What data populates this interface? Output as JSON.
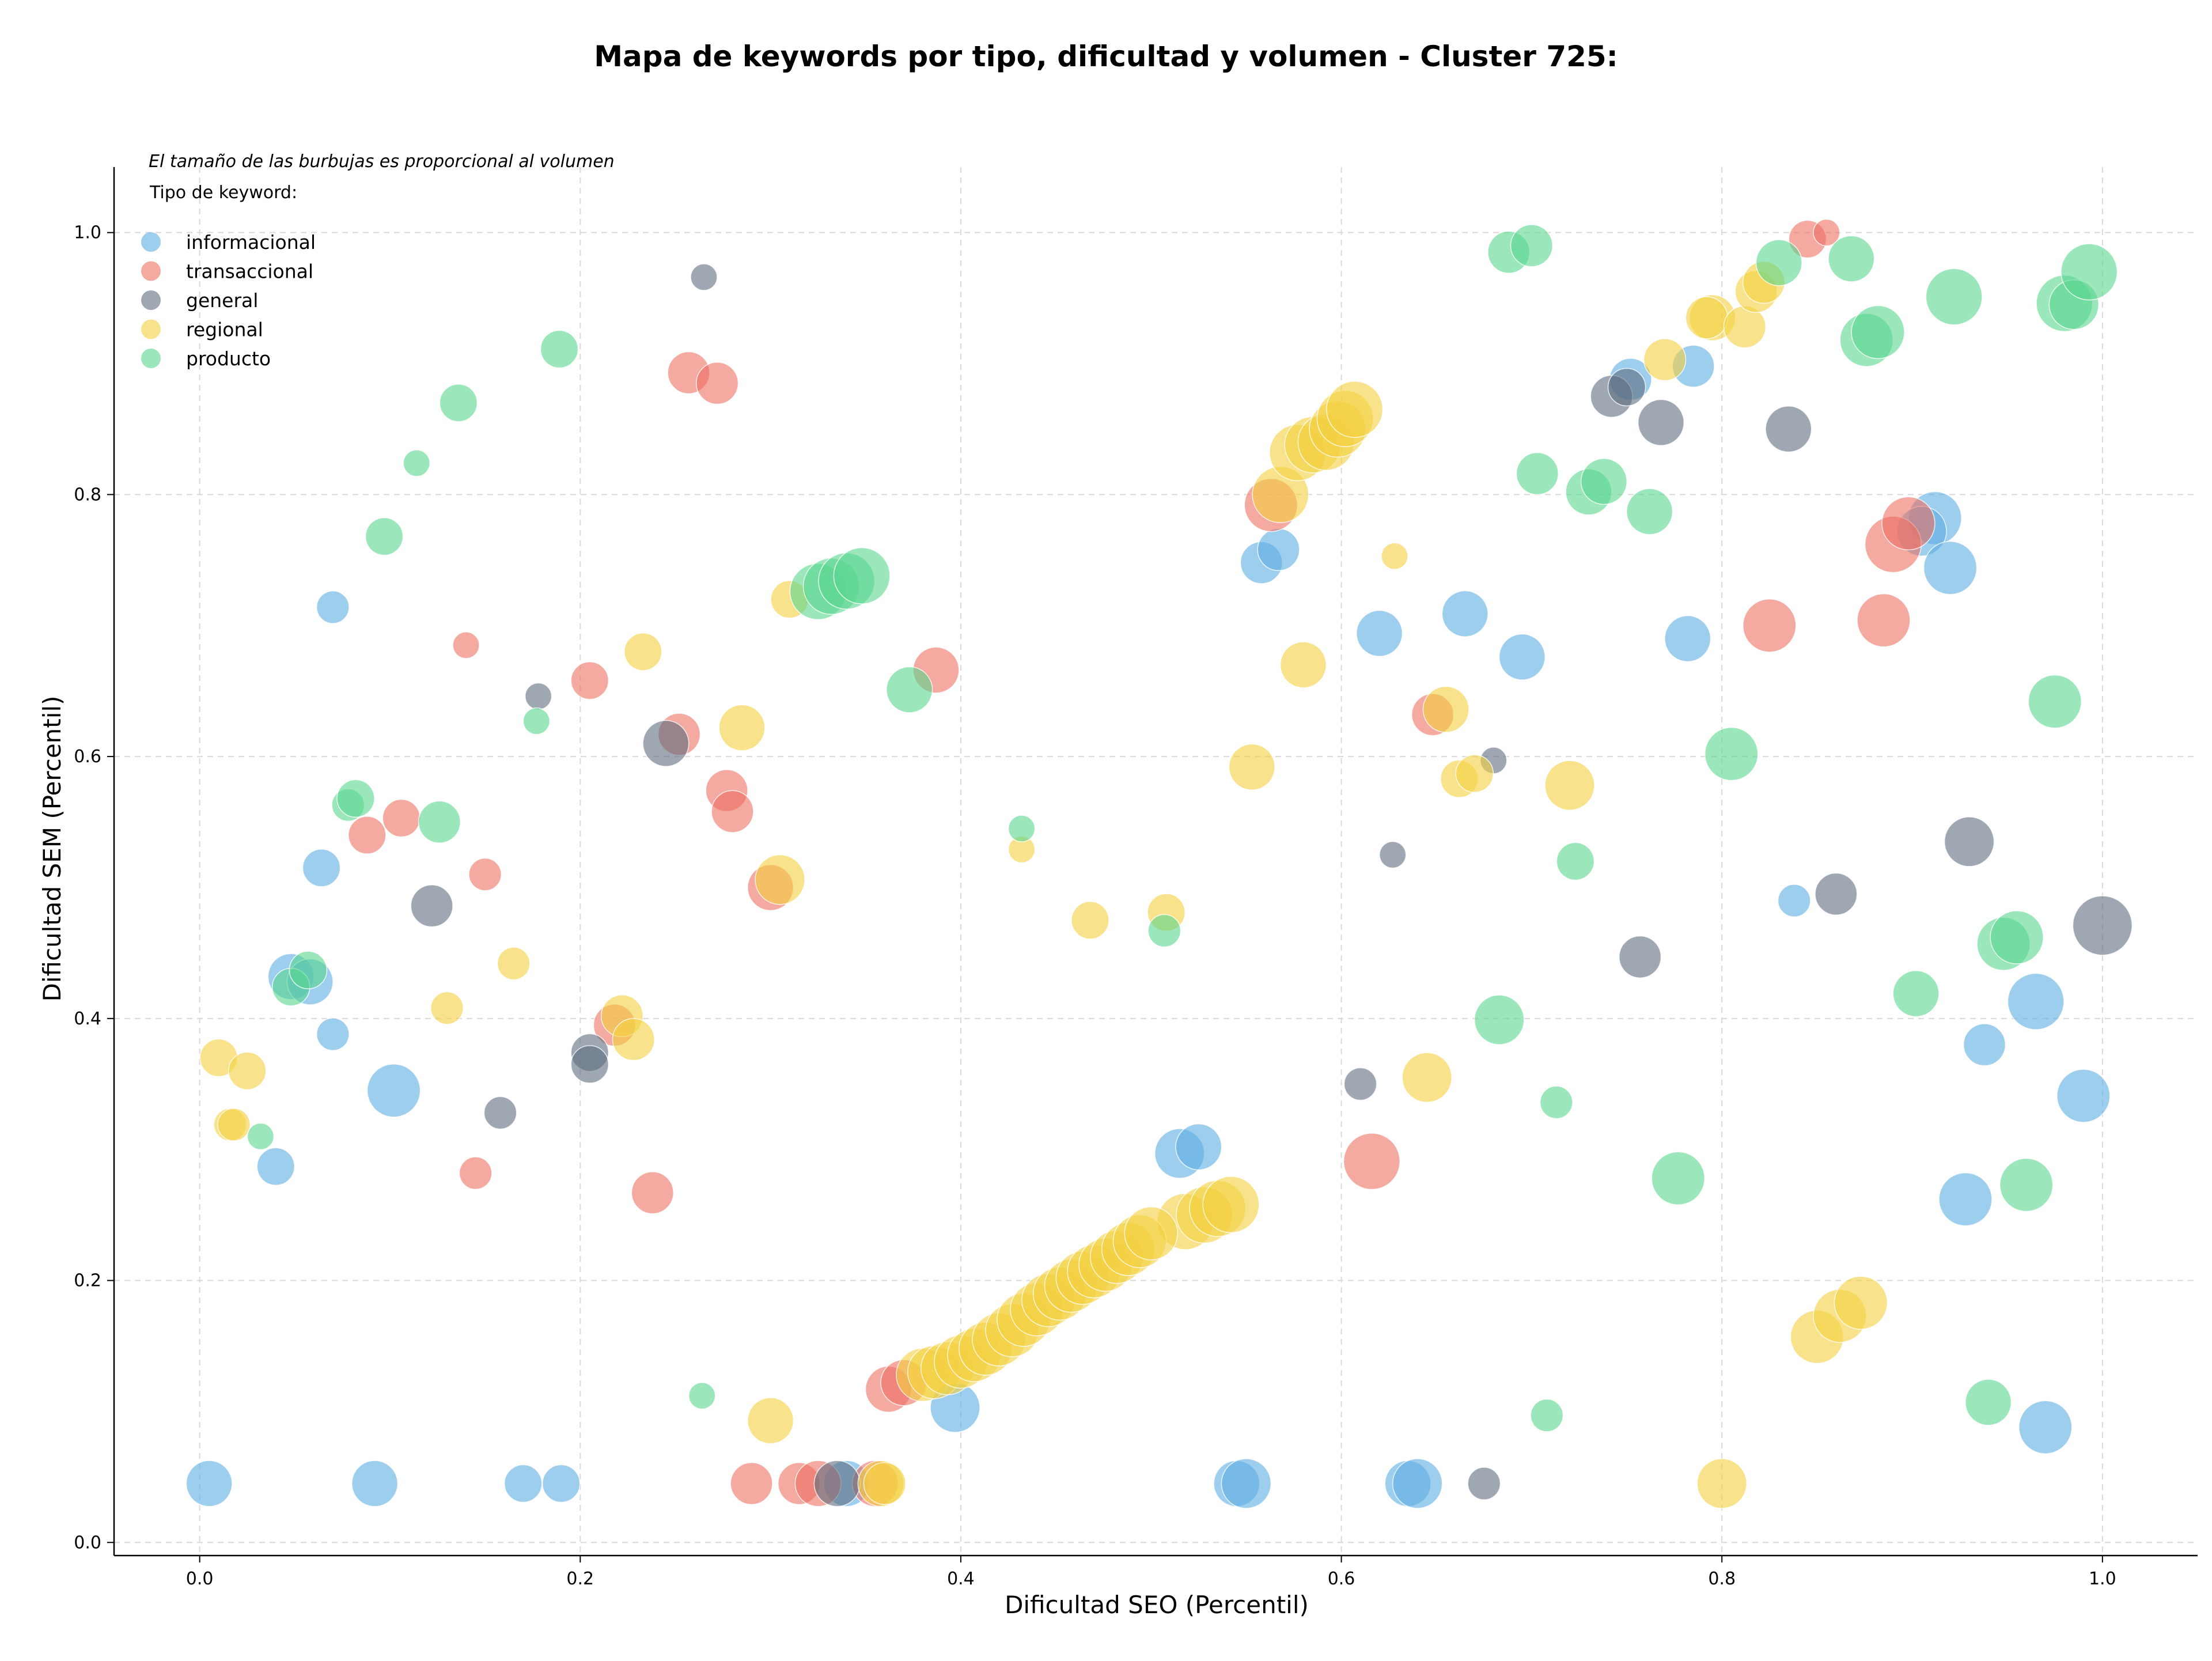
{
  "chart_data": {
    "type": "scatter",
    "title": "Mapa de keywords por tipo, dificultad y volumen - Cluster 725:",
    "xlabel": "Dificultad SEO (Percentil)",
    "ylabel": "Dificultad SEM (Percentil)",
    "xlim": [
      -0.045,
      1.05
    ],
    "ylim": [
      -0.01,
      1.05
    ],
    "xticks": [
      "0.0",
      "0.2",
      "0.4",
      "0.6",
      "0.8",
      "1.0"
    ],
    "yticks": [
      "0.0",
      "0.2",
      "0.4",
      "0.6",
      "0.8",
      "1.0"
    ],
    "grid": true,
    "legend_placement": "upper-left",
    "legend_title": "Tipo de keyword:",
    "note": "El tamaño de las burbujas es proporcional al volumen",
    "series": [
      {
        "name": "informacional",
        "color": "#5DADE2",
        "points": [
          [
            0.005,
            0.045,
            3
          ],
          [
            0.092,
            0.045,
            3
          ],
          [
            0.17,
            0.045,
            2
          ],
          [
            0.19,
            0.045,
            2
          ],
          [
            0.04,
            0.287,
            2
          ],
          [
            0.07,
            0.388,
            1.5
          ],
          [
            0.048,
            0.432,
            3
          ],
          [
            0.058,
            0.428,
            3
          ],
          [
            0.064,
            0.515,
            2
          ],
          [
            0.07,
            0.714,
            1.5
          ],
          [
            0.102,
            0.345,
            4
          ],
          [
            0.34,
            0.045,
            3
          ],
          [
            0.397,
            0.103,
            3.5
          ],
          [
            0.545,
            0.045,
            3
          ],
          [
            0.55,
            0.045,
            3.5
          ],
          [
            0.635,
            0.045,
            3
          ],
          [
            0.64,
            0.045,
            3.5
          ],
          [
            0.515,
            0.297,
            3.5
          ],
          [
            0.525,
            0.302,
            3
          ],
          [
            0.558,
            0.748,
            2.5
          ],
          [
            0.567,
            0.758,
            2.5
          ],
          [
            0.62,
            0.694,
            3
          ],
          [
            0.665,
            0.709,
            3
          ],
          [
            0.695,
            0.676,
            3
          ],
          [
            0.782,
            0.69,
            3
          ],
          [
            0.752,
            0.888,
            2.5
          ],
          [
            0.785,
            0.898,
            2.5
          ],
          [
            0.912,
            0.782,
            4
          ],
          [
            0.905,
            0.772,
            3.5
          ],
          [
            0.92,
            0.744,
            4
          ],
          [
            0.838,
            0.49,
            1.5
          ],
          [
            0.938,
            0.38,
            2.5
          ],
          [
            0.965,
            0.413,
            4.5
          ],
          [
            0.99,
            0.341,
            4
          ],
          [
            0.928,
            0.262,
            4
          ],
          [
            0.97,
            0.088,
            4
          ]
        ]
      },
      {
        "name": "transaccional",
        "color": "#EC7063",
        "points": [
          [
            0.088,
            0.54,
            2
          ],
          [
            0.106,
            0.553,
            2
          ],
          [
            0.15,
            0.51,
            1.5
          ],
          [
            0.14,
            0.685,
            1
          ],
          [
            0.145,
            0.282,
            1.5
          ],
          [
            0.205,
            0.658,
            2
          ],
          [
            0.218,
            0.395,
            2.5
          ],
          [
            0.238,
            0.267,
            2.5
          ],
          [
            0.252,
            0.617,
            2.5
          ],
          [
            0.257,
            0.893,
            2.5
          ],
          [
            0.272,
            0.885,
            2.5
          ],
          [
            0.277,
            0.574,
            2.5
          ],
          [
            0.28,
            0.558,
            2.5
          ],
          [
            0.3,
            0.5,
            3
          ],
          [
            0.387,
            0.666,
            3
          ],
          [
            0.29,
            0.045,
            2.5
          ],
          [
            0.315,
            0.045,
            2.5
          ],
          [
            0.325,
            0.045,
            3
          ],
          [
            0.355,
            0.045,
            3
          ],
          [
            0.362,
            0.117,
            3
          ],
          [
            0.37,
            0.122,
            3
          ],
          [
            0.563,
            0.792,
            4
          ],
          [
            0.648,
            0.632,
            2.5
          ],
          [
            0.616,
            0.291,
            4.5
          ],
          [
            0.825,
            0.7,
            4
          ],
          [
            0.885,
            0.704,
            4
          ],
          [
            0.89,
            0.762,
            4.5
          ],
          [
            0.898,
            0.778,
            4
          ],
          [
            0.845,
            0.995,
            2
          ],
          [
            0.855,
            1.0,
            1
          ]
        ]
      },
      {
        "name": "general",
        "color": "#5D6D7E",
        "points": [
          [
            0.122,
            0.486,
            2.5
          ],
          [
            0.158,
            0.328,
            1.5
          ],
          [
            0.178,
            0.646,
            1
          ],
          [
            0.205,
            0.374,
            2
          ],
          [
            0.205,
            0.365,
            2
          ],
          [
            0.245,
            0.61,
            3
          ],
          [
            0.265,
            0.966,
            1
          ],
          [
            0.335,
            0.045,
            3
          ],
          [
            0.61,
            0.35,
            1.5
          ],
          [
            0.627,
            0.525,
            1
          ],
          [
            0.68,
            0.597,
            1
          ],
          [
            0.675,
            0.045,
            1.5
          ],
          [
            0.742,
            0.875,
            2.5
          ],
          [
            0.75,
            0.882,
            2
          ],
          [
            0.768,
            0.855,
            3
          ],
          [
            0.835,
            0.85,
            3
          ],
          [
            0.757,
            0.447,
            2.5
          ],
          [
            0.86,
            0.495,
            2.5
          ],
          [
            0.93,
            0.535,
            3.5
          ],
          [
            1.0,
            0.471,
            5
          ]
        ]
      },
      {
        "name": "regional",
        "color": "#F4D03F",
        "points": [
          [
            0.01,
            0.37,
            2
          ],
          [
            0.025,
            0.36,
            2
          ],
          [
            0.016,
            0.319,
            1.5
          ],
          [
            0.018,
            0.319,
            1.5
          ],
          [
            0.13,
            0.408,
            1.5
          ],
          [
            0.165,
            0.442,
            1.5
          ],
          [
            0.222,
            0.402,
            2.5
          ],
          [
            0.228,
            0.384,
            2.5
          ],
          [
            0.233,
            0.68,
            2
          ],
          [
            0.285,
            0.622,
            3
          ],
          [
            0.3,
            0.093,
            3
          ],
          [
            0.305,
            0.506,
            3.5
          ],
          [
            0.31,
            0.72,
            2
          ],
          [
            0.358,
            0.045,
            3
          ],
          [
            0.36,
            0.045,
            2.5
          ],
          [
            0.432,
            0.529,
            1
          ],
          [
            0.468,
            0.475,
            2
          ],
          [
            0.508,
            0.481,
            2
          ],
          [
            0.553,
            0.592,
            3
          ],
          [
            0.58,
            0.67,
            3
          ],
          [
            0.628,
            0.753,
            1
          ],
          [
            0.645,
            0.355,
            3.5
          ],
          [
            0.655,
            0.636,
            3
          ],
          [
            0.662,
            0.583,
            2
          ],
          [
            0.67,
            0.587,
            2
          ],
          [
            0.72,
            0.578,
            3.5
          ],
          [
            0.77,
            0.903,
            2.5
          ],
          [
            0.795,
            0.935,
            3
          ],
          [
            0.792,
            0.935,
            2.5
          ],
          [
            0.812,
            0.928,
            2.5
          ],
          [
            0.818,
            0.955,
            2.5
          ],
          [
            0.822,
            0.962,
            2.5
          ],
          [
            0.8,
            0.045,
            3.5
          ],
          [
            0.85,
            0.157,
            4
          ],
          [
            0.862,
            0.173,
            4
          ],
          [
            0.873,
            0.183,
            4
          ],
          [
            0.568,
            0.8,
            4.5
          ],
          [
            0.577,
            0.832,
            4.5
          ],
          [
            0.585,
            0.838,
            4.5
          ],
          [
            0.592,
            0.84,
            4.5
          ],
          [
            0.598,
            0.85,
            4.5
          ],
          [
            0.602,
            0.858,
            4.5
          ],
          [
            0.607,
            0.865,
            4.5
          ],
          [
            0.518,
            0.245,
            4.5
          ],
          [
            0.528,
            0.25,
            4.5
          ],
          [
            0.535,
            0.255,
            4.5
          ],
          [
            0.542,
            0.258,
            4.5
          ],
          [
            0.38,
            0.128,
            4
          ],
          [
            0.386,
            0.13,
            4
          ],
          [
            0.393,
            0.133,
            4
          ],
          [
            0.4,
            0.138,
            4
          ],
          [
            0.407,
            0.143,
            4
          ],
          [
            0.413,
            0.148,
            4
          ],
          [
            0.42,
            0.155,
            4
          ],
          [
            0.427,
            0.162,
            4
          ],
          [
            0.433,
            0.17,
            4
          ],
          [
            0.44,
            0.178,
            4
          ],
          [
            0.446,
            0.185,
            4
          ],
          [
            0.452,
            0.19,
            4
          ],
          [
            0.458,
            0.196,
            4
          ],
          [
            0.464,
            0.202,
            4
          ],
          [
            0.47,
            0.207,
            4
          ],
          [
            0.476,
            0.212,
            4
          ],
          [
            0.482,
            0.218,
            4
          ],
          [
            0.488,
            0.224,
            4
          ],
          [
            0.494,
            0.23,
            4
          ],
          [
            0.5,
            0.236,
            4
          ]
        ]
      },
      {
        "name": "producto",
        "color": "#58D68D",
        "points": [
          [
            0.032,
            0.31,
            1
          ],
          [
            0.048,
            0.424,
            2
          ],
          [
            0.057,
            0.437,
            2
          ],
          [
            0.078,
            0.563,
            1.5
          ],
          [
            0.082,
            0.568,
            2
          ],
          [
            0.097,
            0.768,
            2
          ],
          [
            0.114,
            0.824,
            1
          ],
          [
            0.126,
            0.55,
            2.5
          ],
          [
            0.136,
            0.87,
            2
          ],
          [
            0.177,
            0.627,
            1
          ],
          [
            0.189,
            0.911,
            2
          ],
          [
            0.264,
            0.112,
            1
          ],
          [
            0.325,
            0.726,
            4.5
          ],
          [
            0.332,
            0.73,
            4.5
          ],
          [
            0.34,
            0.734,
            4.5
          ],
          [
            0.348,
            0.738,
            4.5
          ],
          [
            0.373,
            0.651,
            3
          ],
          [
            0.432,
            0.545,
            1
          ],
          [
            0.507,
            0.467,
            1.5
          ],
          [
            0.683,
            0.399,
            3.5
          ],
          [
            0.688,
            0.985,
            2.5
          ],
          [
            0.7,
            0.99,
            2.5
          ],
          [
            0.703,
            0.816,
            2.5
          ],
          [
            0.708,
            0.097,
            1.5
          ],
          [
            0.713,
            0.336,
            1.5
          ],
          [
            0.723,
            0.52,
            2
          ],
          [
            0.73,
            0.802,
            3
          ],
          [
            0.738,
            0.81,
            3
          ],
          [
            0.762,
            0.787,
            3
          ],
          [
            0.777,
            0.278,
            4
          ],
          [
            0.805,
            0.602,
            4
          ],
          [
            0.83,
            0.977,
            3
          ],
          [
            0.868,
            0.98,
            3
          ],
          [
            0.876,
            0.918,
            4
          ],
          [
            0.882,
            0.924,
            4
          ],
          [
            0.922,
            0.951,
            4.5
          ],
          [
            0.902,
            0.419,
            3
          ],
          [
            0.94,
            0.107,
            3
          ],
          [
            0.948,
            0.457,
            4
          ],
          [
            0.955,
            0.462,
            4
          ],
          [
            0.96,
            0.273,
            4
          ],
          [
            0.975,
            0.642,
            4
          ],
          [
            0.98,
            0.946,
            4.5
          ],
          [
            0.985,
            0.945,
            3.5
          ],
          [
            0.993,
            0.97,
            4.5
          ]
        ]
      }
    ]
  }
}
